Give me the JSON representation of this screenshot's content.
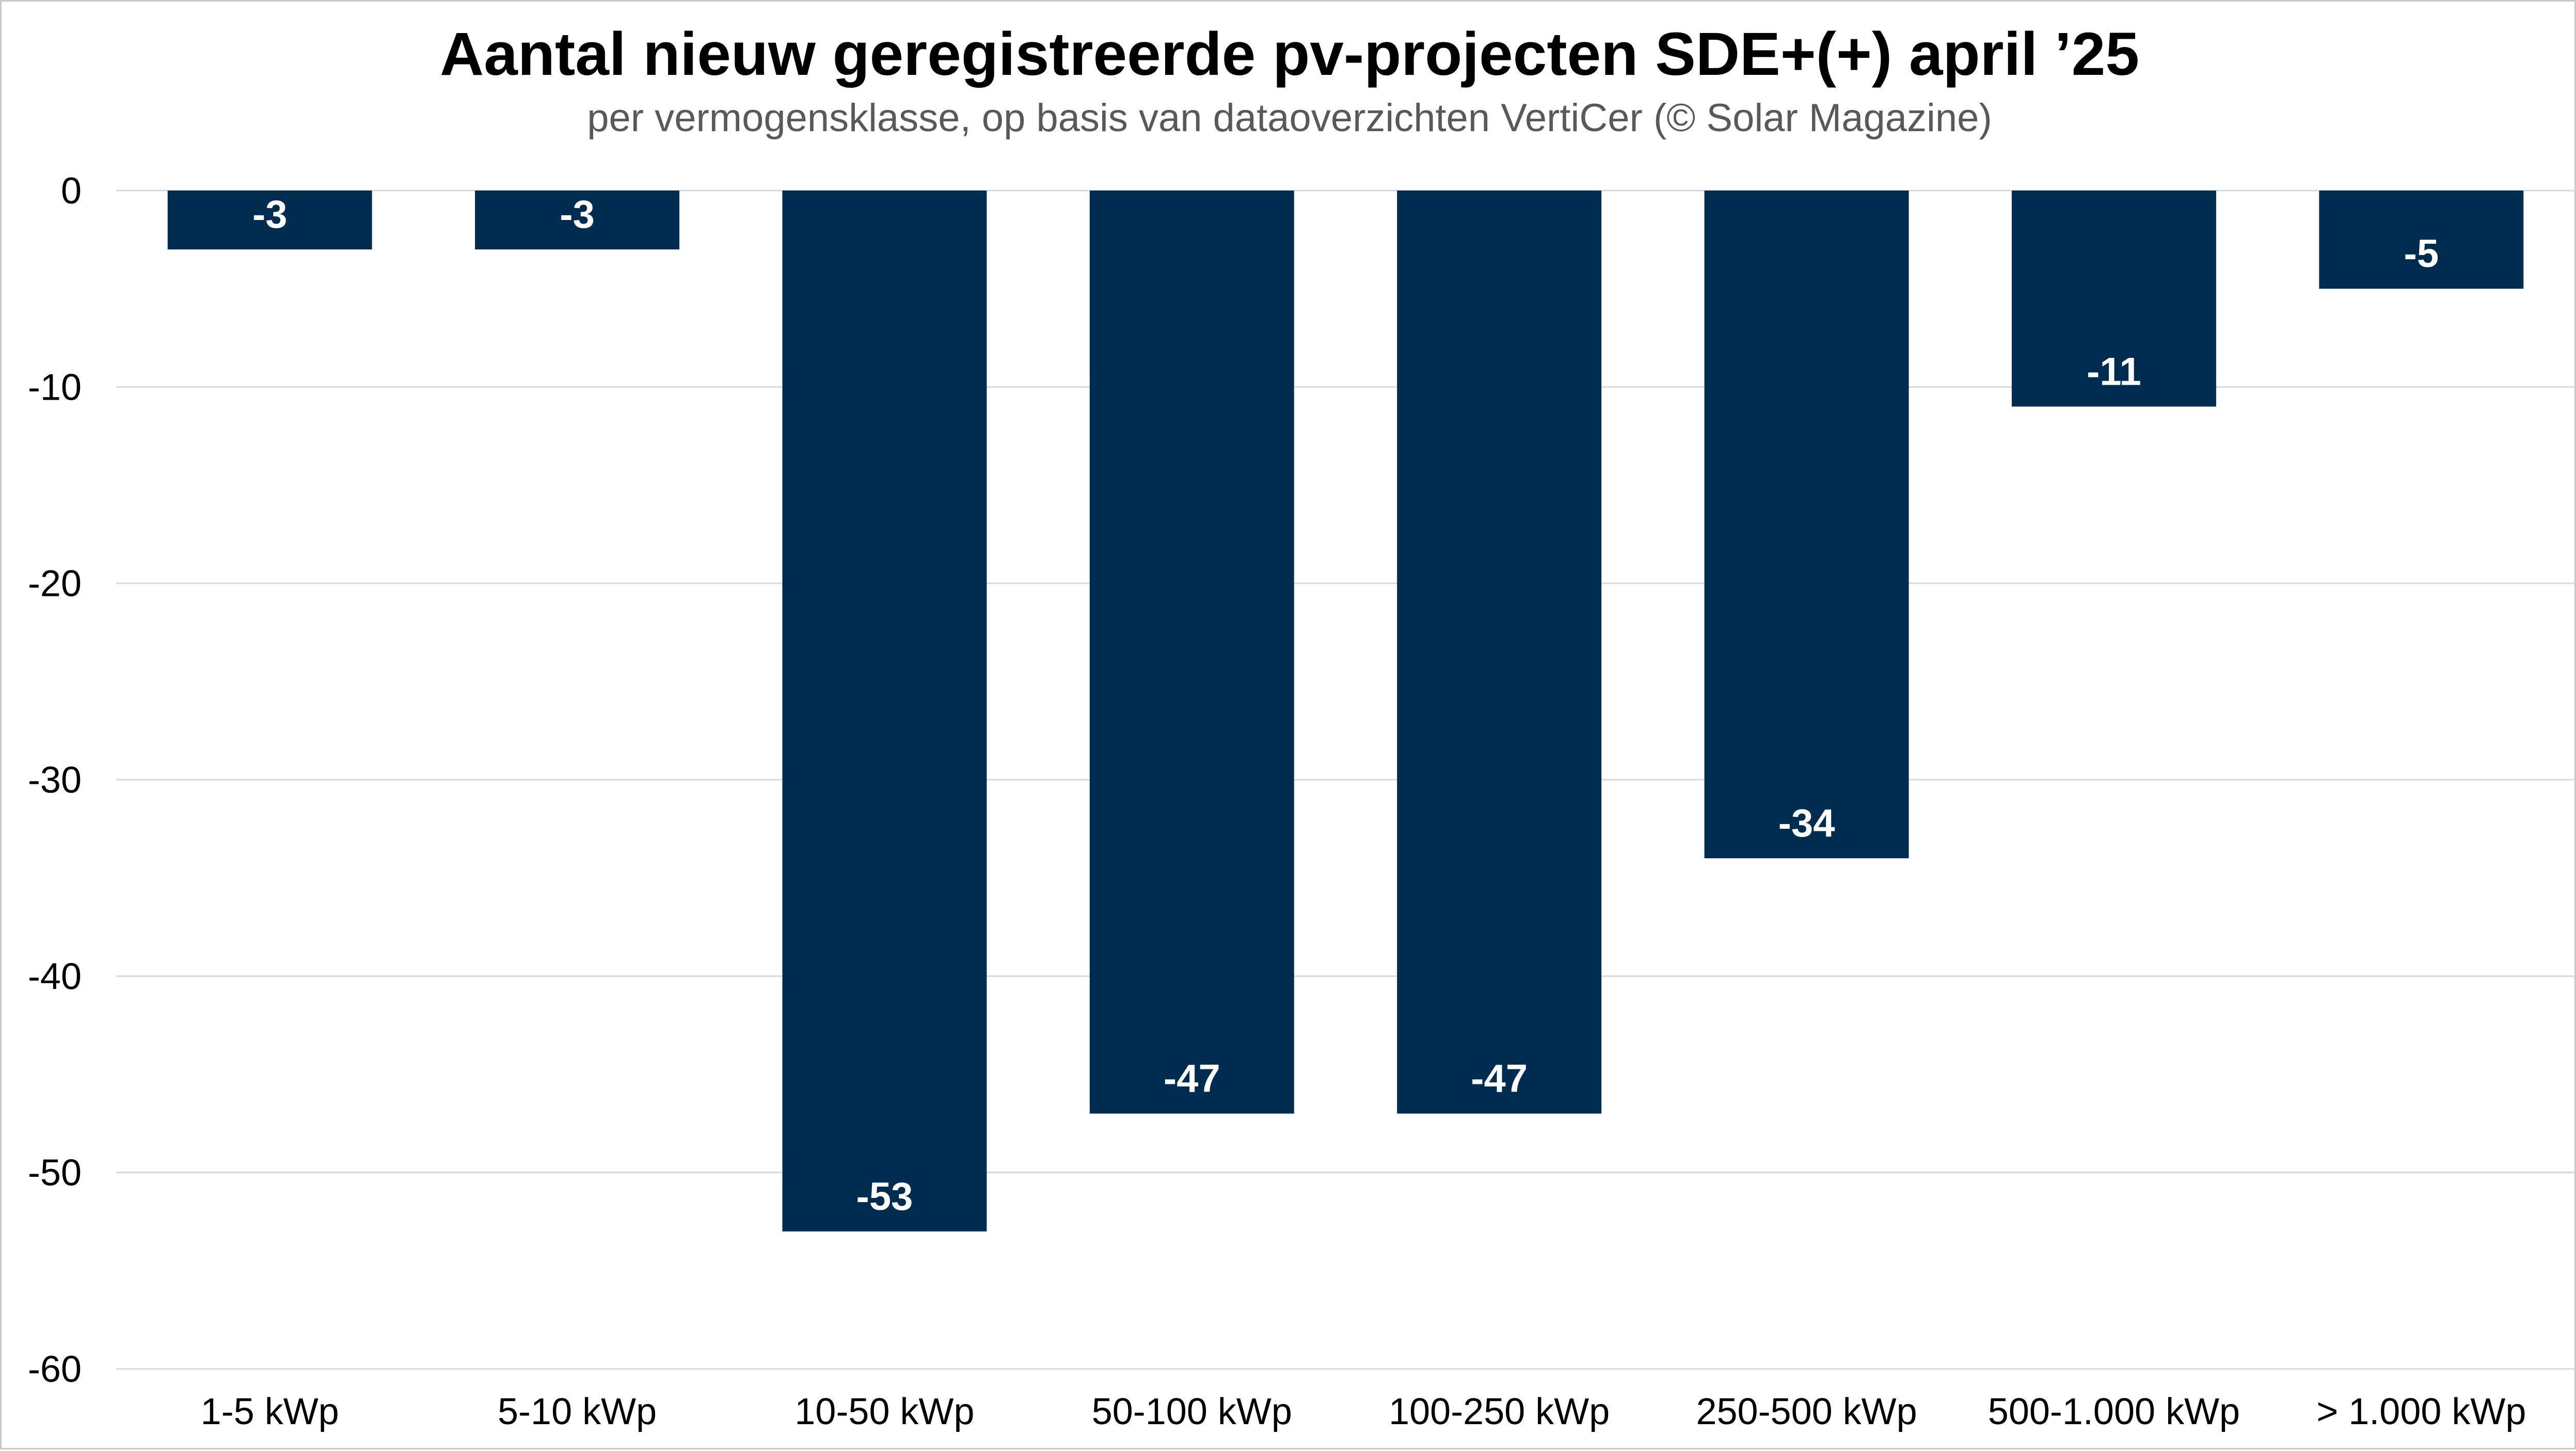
{
  "chart_data": {
    "type": "bar",
    "title": "Aantal nieuw geregistreerde pv-projecten SDE+(+) april ’25",
    "subtitle": "per vermogensklasse, op basis van dataoverzichten VertiCer (© Solar Magazine)",
    "categories": [
      "1-5 kWp",
      "5-10 kWp",
      "10-50 kWp",
      "50-100 kWp",
      "100-250 kWp",
      "250-500 kWp",
      "500-1.000 kWp",
      "> 1.000 kWp"
    ],
    "values": [
      -3,
      -3,
      -53,
      -47,
      -47,
      -34,
      -11,
      -5
    ],
    "data_labels": [
      "-3",
      "-3",
      "-53",
      "-47",
      "-47",
      "-34",
      "-11",
      "-5"
    ],
    "ylim": [
      -60,
      0
    ],
    "yticks": [
      0,
      -10,
      -20,
      -30,
      -40,
      -50,
      -60
    ],
    "ytick_labels": [
      "0",
      "-10",
      "-20",
      "-30",
      "-40",
      "-50",
      "-60"
    ],
    "xlabel": "",
    "ylabel": "",
    "grid": true,
    "legend": "none",
    "bar_color": "#002c50",
    "grid_color": "#d9d9d9"
  }
}
